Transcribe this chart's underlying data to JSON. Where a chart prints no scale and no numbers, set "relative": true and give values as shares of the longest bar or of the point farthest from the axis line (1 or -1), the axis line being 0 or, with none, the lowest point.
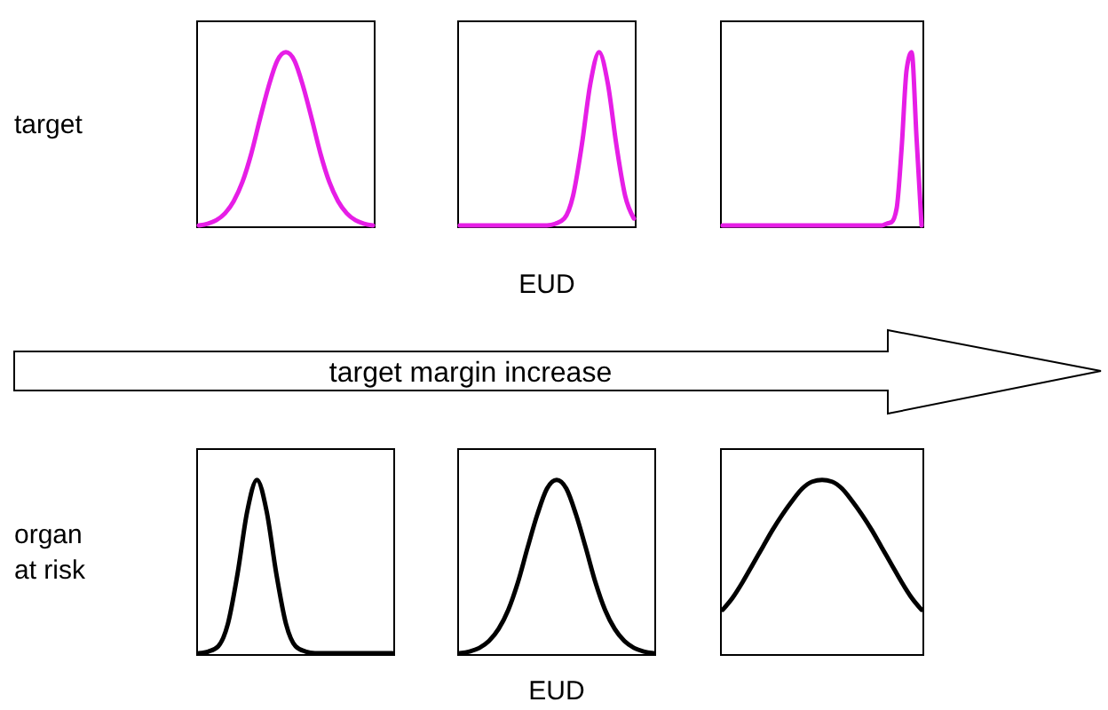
{
  "chart_data": [
    {
      "type": "line",
      "relative": true,
      "ylabel": "target",
      "categories": [
        null,
        null,
        null,
        null,
        null,
        null,
        null,
        null,
        null,
        null,
        null,
        null,
        null,
        null,
        null,
        null,
        null,
        null,
        null,
        null,
        null
      ],
      "series": [
        {
          "color": "#e61ee6",
          "values": [
            0,
            0.01,
            0.03,
            0.07,
            0.14,
            0.25,
            0.41,
            0.61,
            0.8,
            0.95,
            1,
            0.95,
            0.8,
            0.61,
            0.41,
            0.25,
            0.14,
            0.07,
            0.03,
            0.01,
            0
          ]
        }
      ]
    },
    {
      "type": "line",
      "relative": true,
      "xlabel": "EUD",
      "annotations": [
        "target margin increase"
      ],
      "categories": [
        null,
        null,
        null,
        null,
        null,
        null,
        null,
        null,
        null,
        null,
        null,
        null,
        null,
        null,
        null,
        null,
        null,
        null,
        null,
        null,
        null
      ],
      "series": [
        {
          "color": "#e61ee6",
          "values": [
            0,
            0,
            0,
            0,
            0,
            0,
            0,
            0,
            0,
            0,
            0,
            0.01,
            0.04,
            0.17,
            0.46,
            0.82,
            1,
            0.82,
            0.46,
            0.17,
            0.04
          ]
        }
      ]
    },
    {
      "type": "line",
      "relative": true,
      "categories": [
        null,
        null,
        null,
        null,
        null,
        null,
        null,
        null,
        null,
        null,
        null,
        null,
        null,
        null,
        null,
        null,
        null,
        null,
        null,
        null,
        null,
        null,
        null,
        null,
        null,
        null,
        null,
        null,
        null,
        null,
        null,
        null,
        null,
        null,
        null,
        null,
        null,
        null,
        null,
        null,
        null
      ],
      "series": [
        {
          "color": "#e61ee6",
          "values": [
            0,
            0,
            0,
            0,
            0,
            0,
            0,
            0,
            0,
            0,
            0,
            0,
            0,
            0,
            0,
            0,
            0,
            0,
            0,
            0,
            0,
            0,
            0,
            0,
            0,
            0,
            0,
            0,
            0,
            0,
            0,
            0,
            0,
            0.01,
            0.02,
            0.1,
            0.45,
            0.9,
            1,
            0.5,
            0
          ]
        }
      ]
    },
    {
      "type": "line",
      "relative": true,
      "ylabel": "organ at risk",
      "categories": [
        null,
        null,
        null,
        null,
        null,
        null,
        null,
        null,
        null,
        null,
        null,
        null,
        null,
        null,
        null,
        null,
        null,
        null,
        null,
        null,
        null
      ],
      "series": [
        {
          "color": "#000000",
          "values": [
            0,
            0.01,
            0.04,
            0.17,
            0.46,
            0.82,
            1,
            0.82,
            0.46,
            0.17,
            0.04,
            0.01,
            0,
            0,
            0,
            0,
            0,
            0,
            0,
            0,
            0
          ]
        }
      ]
    },
    {
      "type": "line",
      "relative": true,
      "xlabel": "EUD",
      "categories": [
        null,
        null,
        null,
        null,
        null,
        null,
        null,
        null,
        null,
        null,
        null,
        null,
        null,
        null,
        null,
        null,
        null,
        null,
        null,
        null,
        null
      ],
      "series": [
        {
          "color": "#000000",
          "values": [
            0,
            0.01,
            0.03,
            0.07,
            0.14,
            0.25,
            0.41,
            0.61,
            0.8,
            0.95,
            1,
            0.95,
            0.8,
            0.61,
            0.41,
            0.25,
            0.14,
            0.07,
            0.03,
            0.01,
            0
          ]
        }
      ]
    },
    {
      "type": "line",
      "relative": true,
      "categories": [
        null,
        null,
        null,
        null,
        null,
        null,
        null,
        null,
        null,
        null,
        null,
        null,
        null,
        null,
        null,
        null,
        null,
        null,
        null,
        null,
        null
      ],
      "series": [
        {
          "color": "#000000",
          "values": [
            0.25,
            0.32,
            0.41,
            0.51,
            0.61,
            0.71,
            0.8,
            0.88,
            0.95,
            0.99,
            1,
            0.99,
            0.95,
            0.88,
            0.8,
            0.71,
            0.61,
            0.51,
            0.41,
            0.32,
            0.25
          ]
        }
      ]
    }
  ]
}
